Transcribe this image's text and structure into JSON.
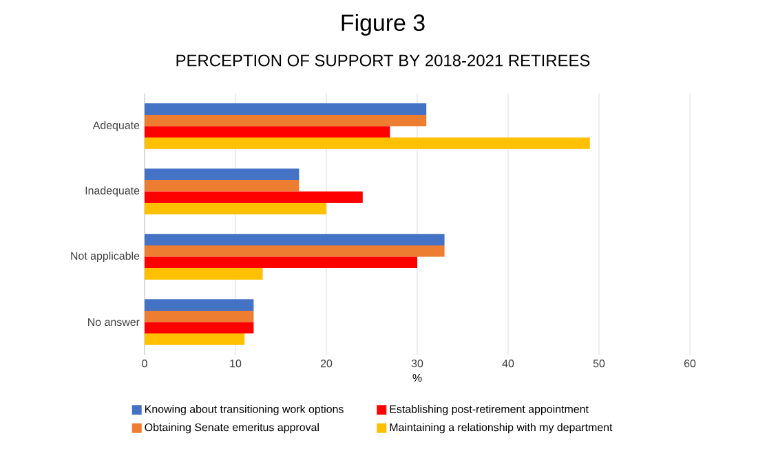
{
  "chart_data": {
    "type": "bar",
    "orientation": "horizontal",
    "title": "Figure 3",
    "subtitle": "PERCEPTION OF SUPPORT BY 2018-2021 RETIREES",
    "xlabel": "%",
    "categories": [
      "Adequate",
      "Inadequate",
      "Not applicable",
      "No answer"
    ],
    "series": [
      {
        "name": "Knowing about transitioning work options",
        "color": "#4472c4",
        "values": [
          31,
          17,
          33,
          12
        ]
      },
      {
        "name": "Obtaining Senate emeritus approval",
        "color": "#ed7d31",
        "values": [
          31,
          17,
          33,
          12
        ]
      },
      {
        "name": "Establishing post-retirement appointment",
        "color": "#ff0000",
        "values": [
          27,
          24,
          30,
          12
        ]
      },
      {
        "name": "Maintaining a relationship with my department",
        "color": "#ffc000",
        "values": [
          49,
          20,
          13,
          11
        ]
      }
    ],
    "xlim": [
      0,
      60
    ],
    "xticks": [
      0,
      10,
      20,
      30,
      40,
      50,
      60
    ],
    "grid": "x",
    "legend": "bottom"
  }
}
